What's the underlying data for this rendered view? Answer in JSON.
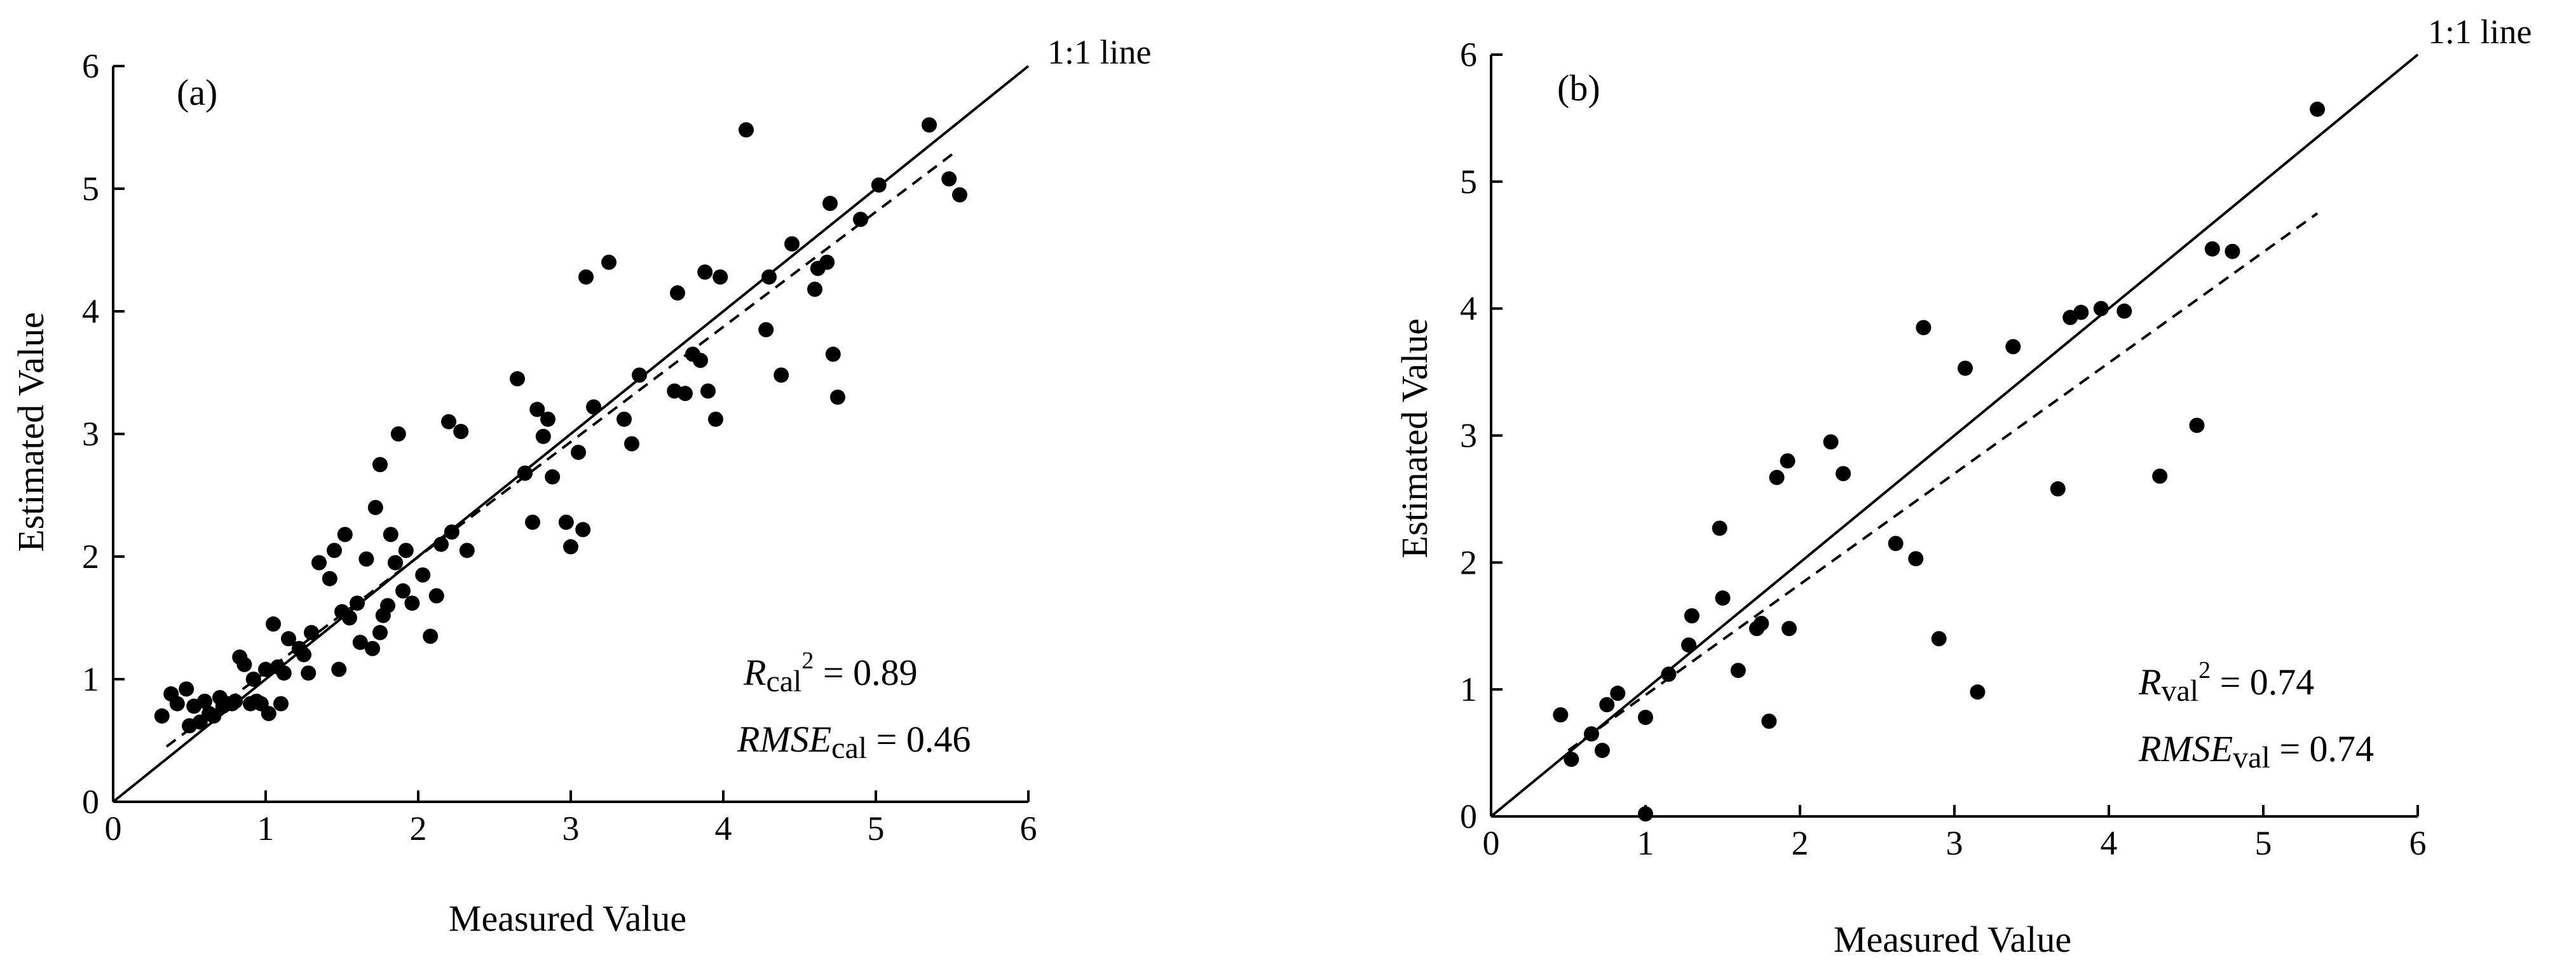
{
  "chart_data": [
    {
      "type": "scatter",
      "panel_label": "(a)",
      "xlabel": "Measured Value",
      "ylabel": "Estimated Value",
      "xlim": [
        0,
        6
      ],
      "ylim": [
        0,
        6
      ],
      "xticks": [
        "0",
        "1",
        "2",
        "3",
        "4",
        "5",
        "6"
      ],
      "yticks": [
        "0",
        "1",
        "2",
        "3",
        "4",
        "5",
        "6"
      ],
      "reference_line": {
        "label": "1:1 line",
        "slope": 1,
        "intercept": 0
      },
      "fit_line": {
        "from": [
          0.35,
          0.45
        ],
        "to": [
          5.5,
          5.28
        ]
      },
      "stats": {
        "r2": {
          "prefix": "R",
          "sub": "cal",
          "sup": "2",
          "value": " = 0.89"
        },
        "rmse": {
          "prefix": "RMSE",
          "sub": "cal",
          "value": " = 0.46"
        }
      },
      "x": [
        0.32,
        0.38,
        0.42,
        0.48,
        0.5,
        0.53,
        0.57,
        0.6,
        0.63,
        0.66,
        0.7,
        0.72,
        0.75,
        0.78,
        0.8,
        0.83,
        0.86,
        0.9,
        0.92,
        0.94,
        0.97,
        1.0,
        1.02,
        1.05,
        1.08,
        1.1,
        1.12,
        1.15,
        1.22,
        1.25,
        1.28,
        1.3,
        1.35,
        1.42,
        1.45,
        1.48,
        1.5,
        1.52,
        1.55,
        1.6,
        1.62,
        1.66,
        1.7,
        1.72,
        1.75,
        1.77,
        1.8,
        1.82,
        1.85,
        1.87,
        1.9,
        1.92,
        1.96,
        2.03,
        2.08,
        2.12,
        2.15,
        2.2,
        2.22,
        2.28,
        2.32,
        2.65,
        2.7,
        2.75,
        2.78,
        2.82,
        2.85,
        2.88,
        2.97,
        3.0,
        3.05,
        3.08,
        3.1,
        3.15,
        3.25,
        3.35,
        3.4,
        3.45,
        3.68,
        3.7,
        3.75,
        3.8,
        3.85,
        3.88,
        3.9,
        3.95,
        3.98,
        4.15,
        4.28,
        4.3,
        4.38,
        4.45,
        4.6,
        4.62,
        4.68,
        4.72,
        4.75,
        4.9,
        5.02,
        5.35,
        5.48,
        5.55,
        1.75,
        2.7,
        4.7
      ],
      "y": [
        0.7,
        0.88,
        0.8,
        0.92,
        0.62,
        0.78,
        0.65,
        0.82,
        0.72,
        0.7,
        0.85,
        0.78,
        0.8,
        0.8,
        0.82,
        1.18,
        1.12,
        0.8,
        1.0,
        0.82,
        0.8,
        1.08,
        0.72,
        1.45,
        1.1,
        0.8,
        1.05,
        1.33,
        1.25,
        1.2,
        1.05,
        1.38,
        1.95,
        1.82,
        2.05,
        1.08,
        1.55,
        2.18,
        1.5,
        1.62,
        1.3,
        1.98,
        1.25,
        2.4,
        2.75,
        1.52,
        1.6,
        2.18,
        1.95,
        3.0,
        1.72,
        2.05,
        1.62,
        1.85,
        1.35,
        1.68,
        2.1,
        3.1,
        2.2,
        3.02,
        2.05,
        3.45,
        2.68,
        2.28,
        3.2,
        2.98,
        3.12,
        2.65,
        2.28,
        2.08,
        2.85,
        2.22,
        4.28,
        3.22,
        4.4,
        3.12,
        2.92,
        3.48,
        3.35,
        4.15,
        3.33,
        3.65,
        3.6,
        4.32,
        3.35,
        3.12,
        4.28,
        5.48,
        3.85,
        4.28,
        3.48,
        4.55,
        4.18,
        4.35,
        4.4,
        3.65,
        3.3,
        4.75,
        5.03,
        5.52,
        5.08,
        4.95,
        1.38,
        2.68,
        4.88
      ]
    },
    {
      "type": "scatter",
      "panel_label": "(b)",
      "xlabel": "Measured Value",
      "ylabel": "Estimated Value",
      "xlim": [
        0,
        6
      ],
      "ylim": [
        0,
        6
      ],
      "xticks": [
        "0",
        "1",
        "2",
        "3",
        "4",
        "5",
        "6"
      ],
      "yticks": [
        "0",
        "1",
        "2",
        "3",
        "4",
        "5",
        "6"
      ],
      "reference_line": {
        "label": "1:1 line",
        "slope": 1,
        "intercept": 0
      },
      "fit_line": {
        "from": [
          0.5,
          0.52
        ],
        "to": [
          5.35,
          4.75
        ]
      },
      "stats": {
        "r2": {
          "prefix": "R",
          "sub": "val",
          "sup": "2",
          "value": " = 0.74"
        },
        "rmse": {
          "prefix": "RMSE",
          "sub": "val",
          "value": " = 0.74"
        }
      },
      "x": [
        0.45,
        0.52,
        0.65,
        0.72,
        0.75,
        0.82,
        1.0,
        1.0,
        1.15,
        1.28,
        1.3,
        1.48,
        1.5,
        1.6,
        1.72,
        1.75,
        1.8,
        1.85,
        1.92,
        1.93,
        2.2,
        2.28,
        2.62,
        2.75,
        2.8,
        2.9,
        3.07,
        3.15,
        3.38,
        3.67,
        3.75,
        3.82,
        3.95,
        4.1,
        4.33,
        4.57,
        4.67,
        4.8,
        5.35
      ],
      "y": [
        0.8,
        0.45,
        0.65,
        0.52,
        0.88,
        0.97,
        0.02,
        0.78,
        1.12,
        1.35,
        1.58,
        2.27,
        1.72,
        1.15,
        1.48,
        1.52,
        0.75,
        2.67,
        2.8,
        1.48,
        2.95,
        2.7,
        2.15,
        2.03,
        3.85,
        1.4,
        3.53,
        0.98,
        3.7,
        2.58,
        3.93,
        3.97,
        4.0,
        3.98,
        2.68,
        3.08,
        4.47,
        4.45,
        5.57
      ]
    }
  ]
}
